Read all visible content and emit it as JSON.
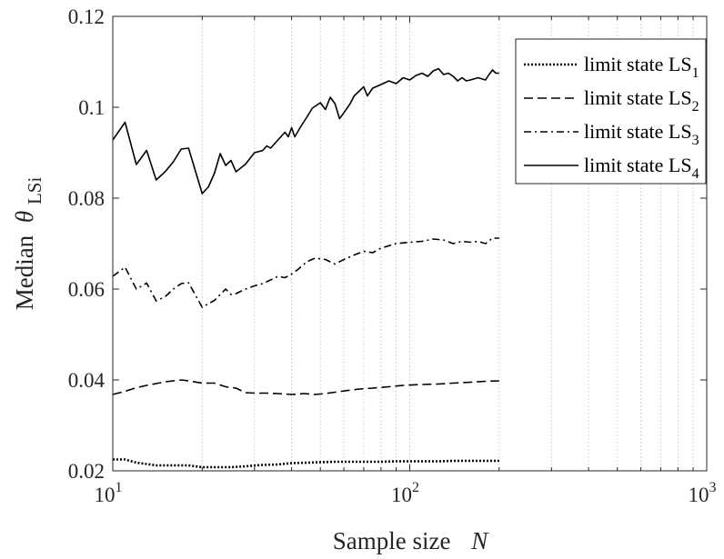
{
  "chart_data": {
    "type": "line",
    "xscale": "log",
    "xlim": [
      10,
      1000
    ],
    "ylim": [
      0.02,
      0.12
    ],
    "xlabel": "Sample size",
    "xlabel_var": "N",
    "ylabel": "Median",
    "ylabel_symbol": "θ",
    "ylabel_sub": "LSi",
    "grid": "x-minor dotted",
    "legend_position": "top-right",
    "x_ticks": [
      {
        "value": 10,
        "base": "10",
        "exp": "1"
      },
      {
        "value": 100,
        "base": "10",
        "exp": "2"
      },
      {
        "value": 1000,
        "base": "10",
        "exp": "3"
      }
    ],
    "y_ticks": [
      "0.02",
      "0.04",
      "0.06",
      "0.08",
      "0.1",
      "0.12"
    ],
    "series": [
      {
        "name": "limit state LS",
        "sub": "1",
        "style": "dotted",
        "points": [
          [
            10,
            0.0225
          ],
          [
            11,
            0.0225
          ],
          [
            12,
            0.0218
          ],
          [
            13,
            0.0215
          ],
          [
            14,
            0.0212
          ],
          [
            16,
            0.0212
          ],
          [
            18,
            0.0212
          ],
          [
            20,
            0.0208
          ],
          [
            22,
            0.0208
          ],
          [
            25,
            0.0208
          ],
          [
            28,
            0.021
          ],
          [
            32,
            0.0213
          ],
          [
            36,
            0.0214
          ],
          [
            40,
            0.0217
          ],
          [
            45,
            0.0218
          ],
          [
            50,
            0.0219
          ],
          [
            56,
            0.022
          ],
          [
            63,
            0.022
          ],
          [
            70,
            0.022
          ],
          [
            80,
            0.022
          ],
          [
            90,
            0.0221
          ],
          [
            100,
            0.0221
          ],
          [
            112,
            0.0221
          ],
          [
            125,
            0.0221
          ],
          [
            140,
            0.0222
          ],
          [
            160,
            0.0222
          ],
          [
            180,
            0.0222
          ],
          [
            200,
            0.0222
          ]
        ]
      },
      {
        "name": "limit state LS",
        "sub": "2",
        "style": "dashed",
        "points": [
          [
            10,
            0.0368
          ],
          [
            11,
            0.0375
          ],
          [
            12,
            0.0383
          ],
          [
            13,
            0.0388
          ],
          [
            14,
            0.0392
          ],
          [
            15,
            0.0396
          ],
          [
            16,
            0.0398
          ],
          [
            17,
            0.04
          ],
          [
            18,
            0.0398
          ],
          [
            20,
            0.0393
          ],
          [
            22,
            0.0393
          ],
          [
            24,
            0.0385
          ],
          [
            26,
            0.0382
          ],
          [
            28,
            0.0372
          ],
          [
            30,
            0.0371
          ],
          [
            33,
            0.0371
          ],
          [
            36,
            0.037
          ],
          [
            40,
            0.0368
          ],
          [
            44,
            0.037
          ],
          [
            48,
            0.0368
          ],
          [
            52,
            0.037
          ],
          [
            56,
            0.0373
          ],
          [
            62,
            0.0377
          ],
          [
            68,
            0.038
          ],
          [
            75,
            0.0382
          ],
          [
            85,
            0.0385
          ],
          [
            95,
            0.0388
          ],
          [
            110,
            0.039
          ],
          [
            125,
            0.0391
          ],
          [
            140,
            0.0393
          ],
          [
            160,
            0.0395
          ],
          [
            180,
            0.0397
          ],
          [
            200,
            0.0398
          ]
        ]
      },
      {
        "name": "limit state LS",
        "sub": "3",
        "style": "dashdot",
        "points": [
          [
            10,
            0.0628
          ],
          [
            11,
            0.0648
          ],
          [
            12,
            0.06
          ],
          [
            13,
            0.0613
          ],
          [
            14,
            0.0574
          ],
          [
            15,
            0.0583
          ],
          [
            16,
            0.06
          ],
          [
            17,
            0.0612
          ],
          [
            18,
            0.0614
          ],
          [
            20,
            0.056
          ],
          [
            22,
            0.0575
          ],
          [
            24,
            0.06
          ],
          [
            25,
            0.0588
          ],
          [
            26,
            0.059
          ],
          [
            28,
            0.06
          ],
          [
            30,
            0.0607
          ],
          [
            32,
            0.0612
          ],
          [
            34,
            0.062
          ],
          [
            36,
            0.0628
          ],
          [
            38,
            0.0625
          ],
          [
            40,
            0.0633
          ],
          [
            42,
            0.0643
          ],
          [
            45,
            0.066
          ],
          [
            48,
            0.0668
          ],
          [
            52,
            0.0665
          ],
          [
            56,
            0.0655
          ],
          [
            60,
            0.0665
          ],
          [
            65,
            0.0675
          ],
          [
            70,
            0.0683
          ],
          [
            75,
            0.068
          ],
          [
            80,
            0.069
          ],
          [
            90,
            0.07
          ],
          [
            100,
            0.0703
          ],
          [
            110,
            0.0705
          ],
          [
            120,
            0.071
          ],
          [
            130,
            0.0708
          ],
          [
            140,
            0.07
          ],
          [
            150,
            0.0705
          ],
          [
            160,
            0.0703
          ],
          [
            170,
            0.0705
          ],
          [
            180,
            0.07
          ],
          [
            190,
            0.0712
          ],
          [
            200,
            0.0712
          ]
        ]
      },
      {
        "name": "limit state LS",
        "sub": "4",
        "style": "solid",
        "points": [
          [
            10,
            0.0928
          ],
          [
            11,
            0.0967
          ],
          [
            12,
            0.0874
          ],
          [
            13,
            0.0905
          ],
          [
            14,
            0.084
          ],
          [
            15,
            0.0858
          ],
          [
            16,
            0.088
          ],
          [
            17,
            0.0908
          ],
          [
            18,
            0.091
          ],
          [
            20,
            0.081
          ],
          [
            21,
            0.0825
          ],
          [
            22,
            0.0855
          ],
          [
            23,
            0.0898
          ],
          [
            24,
            0.0872
          ],
          [
            25,
            0.0883
          ],
          [
            26,
            0.0858
          ],
          [
            28,
            0.0875
          ],
          [
            30,
            0.09
          ],
          [
            32,
            0.0905
          ],
          [
            33,
            0.0915
          ],
          [
            34,
            0.091
          ],
          [
            36,
            0.0928
          ],
          [
            38,
            0.0945
          ],
          [
            39,
            0.0935
          ],
          [
            40,
            0.0955
          ],
          [
            41,
            0.0935
          ],
          [
            43,
            0.0958
          ],
          [
            45,
            0.0978
          ],
          [
            47,
            0.0998
          ],
          [
            50,
            0.101
          ],
          [
            52,
            0.0995
          ],
          [
            54,
            0.1022
          ],
          [
            56,
            0.1008
          ],
          [
            58,
            0.0975
          ],
          [
            60,
            0.0988
          ],
          [
            63,
            0.1008
          ],
          [
            65,
            0.1025
          ],
          [
            70,
            0.1045
          ],
          [
            72,
            0.1025
          ],
          [
            75,
            0.1042
          ],
          [
            80,
            0.105
          ],
          [
            85,
            0.1058
          ],
          [
            90,
            0.1052
          ],
          [
            95,
            0.1065
          ],
          [
            100,
            0.106
          ],
          [
            105,
            0.107
          ],
          [
            110,
            0.1075
          ],
          [
            115,
            0.1068
          ],
          [
            120,
            0.108
          ],
          [
            125,
            0.1085
          ],
          [
            130,
            0.1072
          ],
          [
            135,
            0.1075
          ],
          [
            140,
            0.1068
          ],
          [
            145,
            0.1058
          ],
          [
            150,
            0.1065
          ],
          [
            155,
            0.1058
          ],
          [
            160,
            0.106
          ],
          [
            170,
            0.1065
          ],
          [
            180,
            0.106
          ],
          [
            185,
            0.1072
          ],
          [
            190,
            0.1082
          ],
          [
            195,
            0.1075
          ],
          [
            200,
            0.1075
          ]
        ]
      }
    ]
  }
}
